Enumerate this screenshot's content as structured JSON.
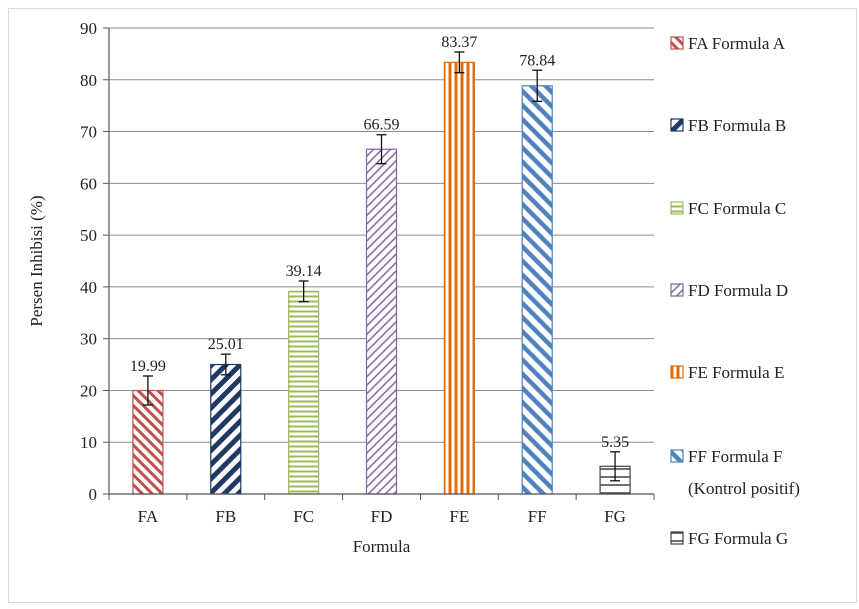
{
  "chart_data": {
    "type": "bar",
    "ylabel": "Persen Inhibisi (%)",
    "xlabel": "Formula",
    "ylim": [
      0,
      90
    ],
    "yticks": [
      "0",
      "10",
      "20",
      "30",
      "40",
      "50",
      "60",
      "70",
      "80",
      "90"
    ],
    "grid": true,
    "legend_placement": "right",
    "categories": [
      "FA",
      "FB",
      "FC",
      "FD",
      "FE",
      "FF",
      "FG"
    ],
    "values": [
      19.99,
      25.01,
      39.14,
      66.59,
      83.37,
      78.84,
      5.35
    ],
    "value_labels": [
      "19.99",
      "25.01",
      "39.14",
      "66.59",
      "83.37",
      "78.84",
      "5.35"
    ],
    "error": [
      2.8,
      2.0,
      2.0,
      2.8,
      2.0,
      3.0,
      2.8
    ],
    "colors": [
      "#c0504d",
      "#1f3864",
      "#9bbb59",
      "#8064a2",
      "#e36c09",
      "#4f81bd",
      "#404040"
    ],
    "patterns": [
      "diag-right",
      "diag-left-thick",
      "horizontal",
      "diag-left",
      "vertical",
      "diag-right-wide",
      "horizontal-wide"
    ],
    "legend": [
      {
        "code": "FA",
        "name": "Formula  A"
      },
      {
        "code": "FB",
        "name": "Formula  B"
      },
      {
        "code": "FC",
        "name": "Formula  C"
      },
      {
        "code": "FD",
        "name": "Formula  D"
      },
      {
        "code": "FE",
        "name": "Formula  E"
      },
      {
        "code": "FF",
        "name": "Formula  F",
        "note": "(Kontrol positif)"
      },
      {
        "code": "FG",
        "name": "Formula  G"
      }
    ]
  }
}
